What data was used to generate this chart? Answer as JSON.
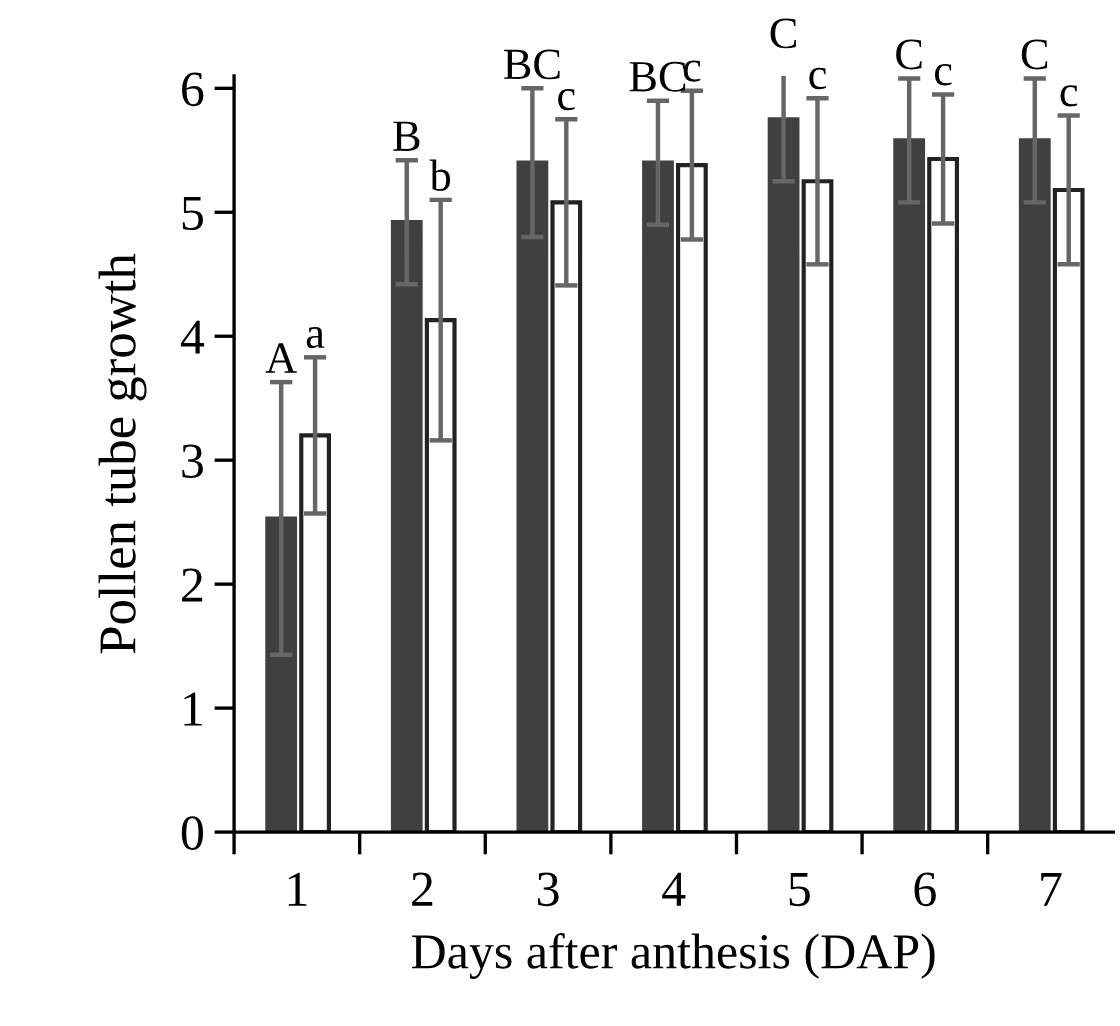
{
  "chart_data": {
    "type": "bar",
    "xlabel": "Days after anthesis (DAP)",
    "ylabel": "Pollen tube growth",
    "categories": [
      "1",
      "2",
      "3",
      "4",
      "5",
      "6",
      "7"
    ],
    "series": [
      {
        "color": "#404040",
        "values": [
          2.53,
          4.92,
          5.4,
          5.4,
          5.75,
          5.58,
          5.58
        ],
        "errors": [
          1.1,
          0.5,
          0.6,
          0.5,
          0.5,
          0.5,
          0.5
        ]
      },
      {
        "color": "#ffffff",
        "values": [
          3.2,
          4.13,
          5.08,
          5.38,
          5.25,
          5.43,
          5.18
        ],
        "errors": [
          0.63,
          0.97,
          0.67,
          0.6,
          0.67,
          0.52,
          0.6
        ]
      }
    ],
    "ylim": [
      0,
      6.1
    ],
    "yticks": [
      0,
      1,
      2,
      3,
      4,
      5,
      6
    ],
    "grid": false,
    "legend": false,
    "annotations": [
      {
        "text": "A",
        "x": "1",
        "y": 3.63
      },
      {
        "text": "a",
        "x": "1",
        "y": 3.83
      },
      {
        "text": "B",
        "x": "2",
        "y": 5.42
      },
      {
        "text": "b",
        "x": "2",
        "y": 5.1
      },
      {
        "text": "BC",
        "x": "3",
        "y": 6.0
      },
      {
        "text": "c",
        "x": "3",
        "y": 5.75
      },
      {
        "text": "BC",
        "x": "4",
        "y": 5.9
      },
      {
        "text": "c",
        "x": "4",
        "y": 5.98
      },
      {
        "text": "C",
        "x": "5",
        "y": 6.25
      },
      {
        "text": "c",
        "x": "5",
        "y": 5.92
      },
      {
        "text": "C",
        "x": "6",
        "y": 6.08
      },
      {
        "text": "c",
        "x": "6",
        "y": 5.95
      },
      {
        "text": "C",
        "x": "7",
        "y": 6.08
      },
      {
        "text": "c",
        "x": "7",
        "y": 5.78
      }
    ]
  }
}
